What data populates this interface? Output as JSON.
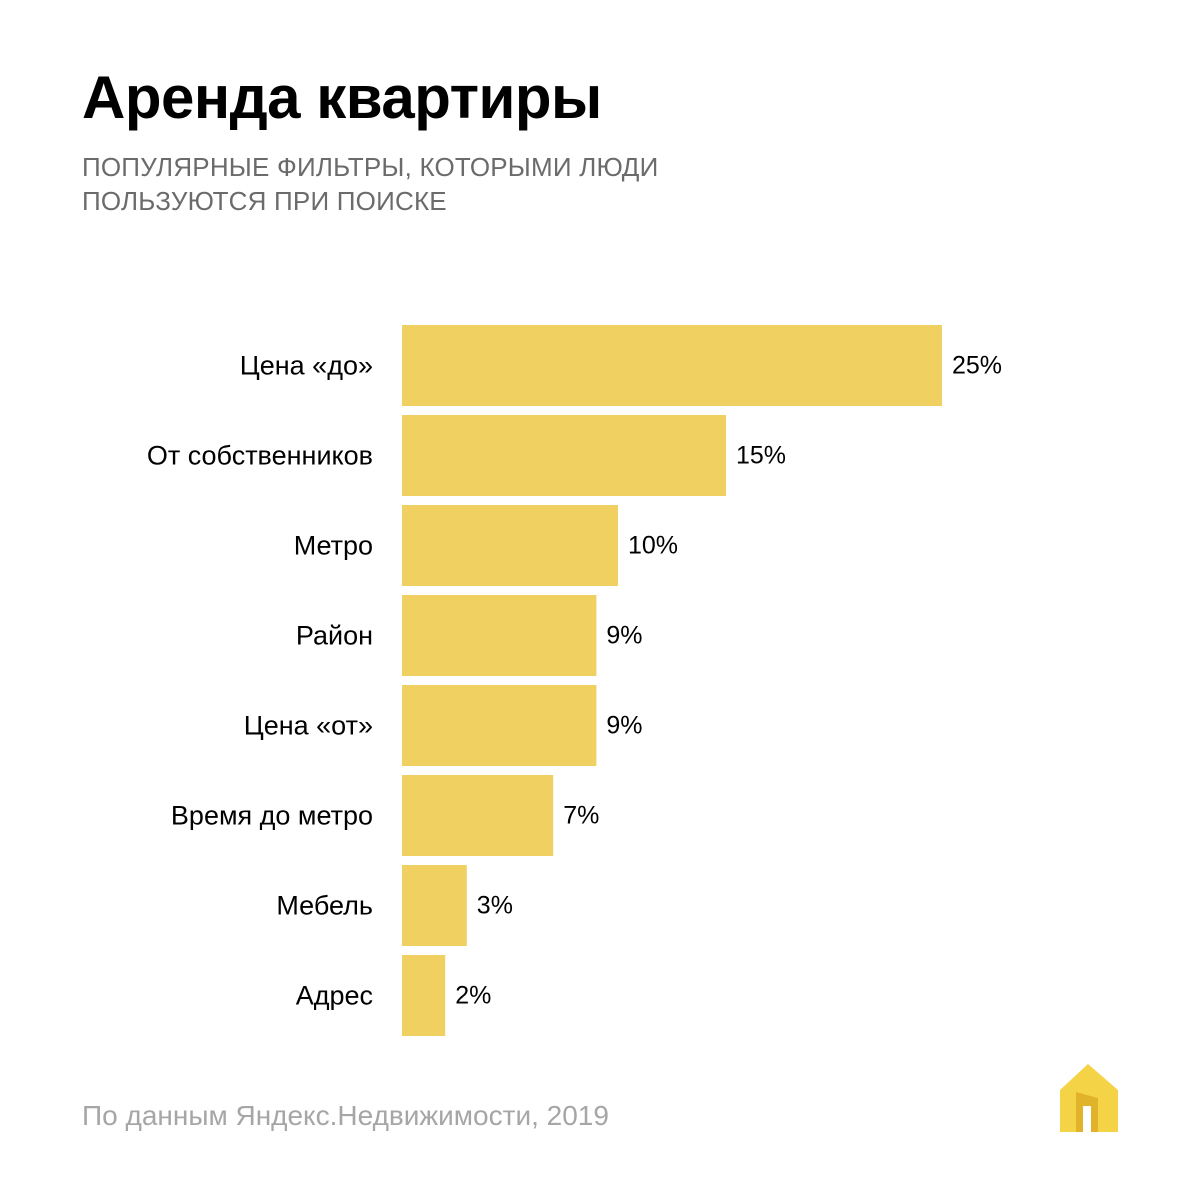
{
  "header": {
    "title": "Аренда квартиры",
    "subtitle_lines": [
      "ПОПУЛЯРНЫЕ ФИЛЬТРЫ, КОТОРЫМИ ЛЮДИ",
      "ПОЛЬЗУЮТСЯ ПРИ ПОИСКЕ"
    ]
  },
  "chart_data": {
    "type": "bar",
    "orientation": "horizontal",
    "title": "Аренда квартиры",
    "subtitle": "ПОПУЛЯРНЫЕ ФИЛЬТРЫ, КОТОРЫМИ ЛЮДИ ПОЛЬЗУЮТСЯ ПРИ ПОИСКЕ",
    "categories": [
      "Цена «до»",
      "От собственников",
      "Метро",
      "Район",
      "Цена «от»",
      "Время до метро",
      "Мебель",
      "Адрес"
    ],
    "values": [
      25,
      15,
      10,
      9,
      9,
      7,
      3,
      2
    ],
    "value_labels": [
      "25%",
      "15%",
      "10%",
      "9%",
      "9%",
      "7%",
      "3%",
      "2%"
    ],
    "xlabel": "",
    "ylabel": "",
    "grid": false,
    "bar_color": "#f0d060"
  },
  "footer": {
    "source": "По данным Яндекс.Недвижимости, 2019"
  },
  "colors": {
    "bar": "#f0d060",
    "logo_main": "#f5d347",
    "logo_shadow": "#e0b32a",
    "title": "#000000",
    "subtitle": "#6b6b6b",
    "footer": "#a6a6a6"
  },
  "logo": {
    "icon": "house-icon"
  }
}
